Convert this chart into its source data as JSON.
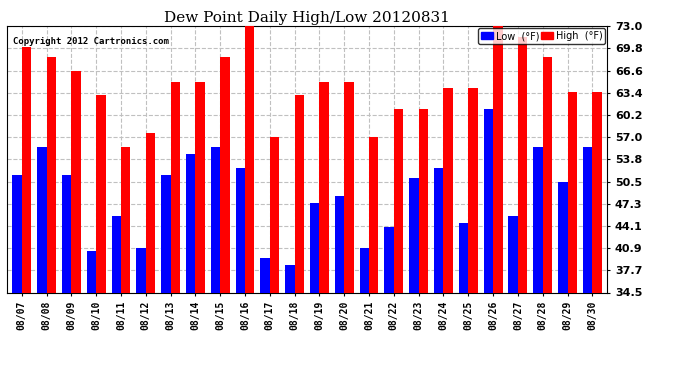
{
  "title": "Dew Point Daily High/Low 20120831",
  "copyright": "Copyright 2012 Cartronics.com",
  "dates": [
    "08/07",
    "08/08",
    "08/09",
    "08/10",
    "08/11",
    "08/12",
    "08/13",
    "08/14",
    "08/15",
    "08/16",
    "08/17",
    "08/18",
    "08/19",
    "08/20",
    "08/21",
    "08/22",
    "08/23",
    "08/24",
    "08/25",
    "08/26",
    "08/27",
    "08/28",
    "08/29",
    "08/30"
  ],
  "high": [
    70.0,
    68.5,
    66.5,
    63.0,
    55.5,
    57.5,
    65.0,
    65.0,
    68.5,
    73.0,
    57.0,
    63.0,
    65.0,
    65.0,
    57.0,
    61.0,
    61.0,
    64.0,
    64.0,
    73.0,
    71.5,
    68.5,
    63.5,
    63.5
  ],
  "low": [
    51.5,
    55.5,
    51.5,
    40.5,
    45.5,
    41.0,
    51.5,
    54.5,
    55.5,
    52.5,
    39.5,
    38.5,
    47.5,
    48.5,
    41.0,
    44.0,
    51.0,
    52.5,
    44.5,
    61.0,
    45.5,
    55.5,
    50.5,
    55.5
  ],
  "high_color": "#ff0000",
  "low_color": "#0000ff",
  "background_color": "#ffffff",
  "plot_background": "#ffffff",
  "grid_color": "#c0c0c0",
  "yticks": [
    34.5,
    37.7,
    40.9,
    44.1,
    47.3,
    50.5,
    53.8,
    57.0,
    60.2,
    63.4,
    66.6,
    69.8,
    73.0
  ],
  "ymin": 34.5,
  "ymax": 73.0,
  "legend_low_label": "Low  (°F)",
  "legend_high_label": "High  (°F)"
}
